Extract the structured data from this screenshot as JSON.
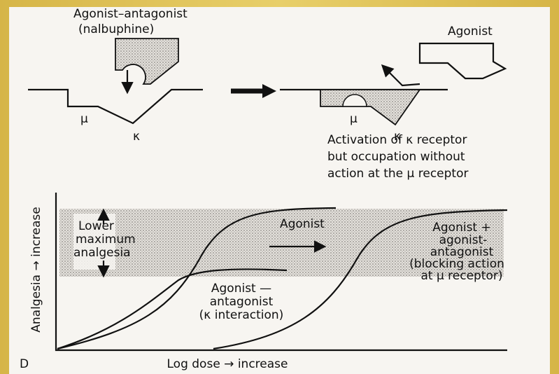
{
  "top_panel": {
    "drug_label": [
      "Agonist–antagonist",
      "(nalbuphine)"
    ],
    "left_receptor_labels": {
      "mu": "μ",
      "kappa": "κ"
    },
    "agonist_label": "Agonist",
    "right_receptor_labels": {
      "mu": "μ",
      "kappa": "κ"
    },
    "caption": [
      "Activation of κ receptor",
      "but occupation without",
      "action at the μ receptor"
    ]
  },
  "bottom_panel": {
    "y_axis_label": "Analgesia → increase",
    "x_axis_label": "Log dose → increase",
    "panel_letter": "D",
    "band_label": [
      "Lower",
      "maximum",
      "analgesia"
    ],
    "agonist_label": "Agonist",
    "combined_label": [
      "Agonist +",
      "agonist-",
      "antagonist",
      "(blocking action",
      "at μ receptor)"
    ],
    "partial_label": [
      "Agonist —",
      "antagonist",
      "(κ interaction)"
    ]
  }
}
